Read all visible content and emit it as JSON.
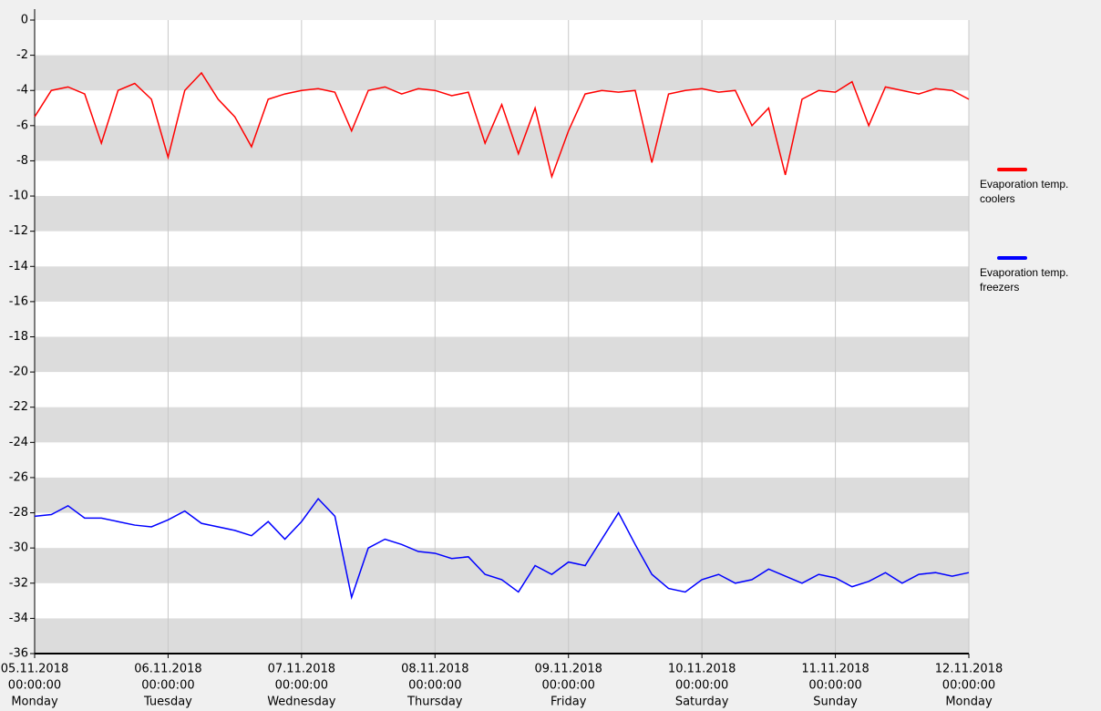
{
  "chart_data": {
    "type": "line",
    "x": [
      "2018-11-05T00:00",
      "2018-11-05T03:00",
      "2018-11-05T06:00",
      "2018-11-05T09:00",
      "2018-11-05T12:00",
      "2018-11-05T15:00",
      "2018-11-05T18:00",
      "2018-11-05T21:00",
      "2018-11-06T00:00",
      "2018-11-06T03:00",
      "2018-11-06T06:00",
      "2018-11-06T09:00",
      "2018-11-06T12:00",
      "2018-11-06T15:00",
      "2018-11-06T18:00",
      "2018-11-06T21:00",
      "2018-11-07T00:00",
      "2018-11-07T03:00",
      "2018-11-07T06:00",
      "2018-11-07T09:00",
      "2018-11-07T12:00",
      "2018-11-07T15:00",
      "2018-11-07T18:00",
      "2018-11-07T21:00",
      "2018-11-08T00:00",
      "2018-11-08T03:00",
      "2018-11-08T06:00",
      "2018-11-08T09:00",
      "2018-11-08T12:00",
      "2018-11-08T15:00",
      "2018-11-08T18:00",
      "2018-11-08T21:00",
      "2018-11-09T00:00",
      "2018-11-09T03:00",
      "2018-11-09T06:00",
      "2018-11-09T09:00",
      "2018-11-09T12:00",
      "2018-11-09T15:00",
      "2018-11-09T18:00",
      "2018-11-09T21:00",
      "2018-11-10T00:00",
      "2018-11-10T03:00",
      "2018-11-10T06:00",
      "2018-11-10T09:00",
      "2018-11-10T12:00",
      "2018-11-10T15:00",
      "2018-11-10T18:00",
      "2018-11-10T21:00",
      "2018-11-11T00:00",
      "2018-11-11T03:00",
      "2018-11-11T06:00",
      "2018-11-11T09:00",
      "2018-11-11T12:00",
      "2018-11-11T15:00",
      "2018-11-11T18:00",
      "2018-11-11T21:00",
      "2018-11-12T00:00"
    ],
    "series": [
      {
        "name": "Evaporation temp. coolers",
        "color": "#ff0000",
        "values": [
          -5.5,
          -4,
          -3.8,
          -4.2,
          -7,
          -4,
          -3.6,
          -4.5,
          -7.8,
          -4,
          -3,
          -4.5,
          -5.5,
          -7.2,
          -4.5,
          -4.2,
          -4,
          -3.9,
          -4.1,
          -6.3,
          -4,
          -3.8,
          -4.2,
          -3.9,
          -4,
          -4.3,
          -4.1,
          -7,
          -4.8,
          -7.6,
          -5,
          -8.9,
          -6.3,
          -4.2,
          -4,
          -4.1,
          -4,
          -8.1,
          -4.2,
          -4,
          -3.9,
          -4.1,
          -4,
          -6,
          -5,
          -8.8,
          -4.5,
          -4,
          -4.1,
          -3.5,
          -6,
          -3.8,
          -4,
          -4.2,
          -3.9,
          -4,
          -4.5
        ]
      },
      {
        "name": "Evaporation temp. freezers",
        "color": "#0000ff",
        "values": [
          -28.2,
          -28.1,
          -27.6,
          -28.3,
          -28.3,
          -28.5,
          -28.7,
          -28.8,
          -28.4,
          -27.9,
          -28.6,
          -28.8,
          -29,
          -29.3,
          -28.5,
          -29.5,
          -28.5,
          -27.2,
          -28.2,
          -32.8,
          -30,
          -29.5,
          -29.8,
          -30.2,
          -30.3,
          -30.6,
          -30.5,
          -31.5,
          -31.8,
          -32.5,
          -31,
          -31.5,
          -30.8,
          -31,
          -29.5,
          -28,
          -29.8,
          -31.5,
          -32.3,
          -32.5,
          -31.8,
          -31.5,
          -32,
          -31.8,
          -31.2,
          -31.6,
          -32,
          -31.5,
          -31.7,
          -32.2,
          -31.9,
          -31.4,
          -32,
          -31.5,
          -31.4,
          -31.6,
          -31.4
        ]
      }
    ],
    "xlim": [
      "2018-11-05T00:00",
      "2018-11-12T00:00"
    ],
    "xticks": [
      {
        "value": "2018-11-05T00:00",
        "label": [
          "05.11.2018",
          "00:00:00",
          "Monday"
        ]
      },
      {
        "value": "2018-11-06T00:00",
        "label": [
          "06.11.2018",
          "00:00:00",
          "Tuesday"
        ]
      },
      {
        "value": "2018-11-07T00:00",
        "label": [
          "07.11.2018",
          "00:00:00",
          "Wednesday"
        ]
      },
      {
        "value": "2018-11-08T00:00",
        "label": [
          "08.11.2018",
          "00:00:00",
          "Thursday"
        ]
      },
      {
        "value": "2018-11-09T00:00",
        "label": [
          "09.11.2018",
          "00:00:00",
          "Friday"
        ]
      },
      {
        "value": "2018-11-10T00:00",
        "label": [
          "10.11.2018",
          "00:00:00",
          "Saturday"
        ]
      },
      {
        "value": "2018-11-11T00:00",
        "label": [
          "11.11.2018",
          "00:00:00",
          "Sunday"
        ]
      },
      {
        "value": "2018-11-12T00:00",
        "label": [
          "12.11.2018",
          "00:00:00",
          "Monday"
        ]
      }
    ],
    "ylim": [
      -36,
      0
    ],
    "yticks": [
      0,
      -2,
      -4,
      -6,
      -8,
      -10,
      -12,
      -14,
      -16,
      -18,
      -20,
      -22,
      -24,
      -26,
      -28,
      -30,
      -32,
      -34,
      -36
    ],
    "grid": true,
    "legend": "right"
  }
}
